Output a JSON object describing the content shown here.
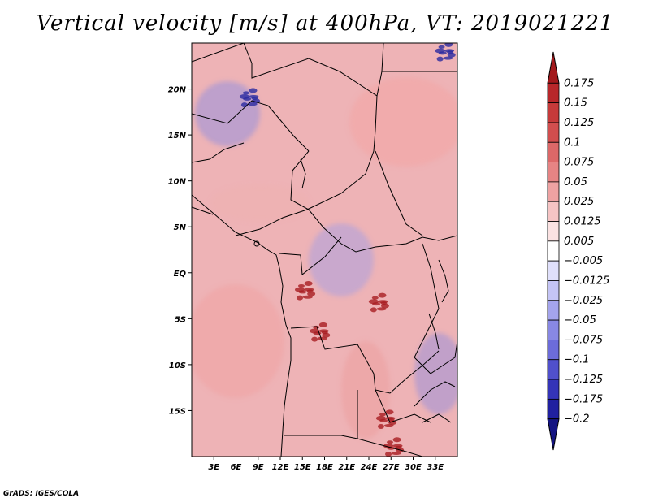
{
  "chart_data": {
    "type": "heatmap",
    "title": "Vertical velocity [m/s] at 400hPa, VT: 2019021221",
    "variable": "Vertical velocity",
    "units": "m/s",
    "level": "400hPa",
    "valid_time": "2019021221",
    "xlabel": "",
    "ylabel": "",
    "xlim": [
      0,
      36
    ],
    "ylim": [
      -20,
      25
    ],
    "x_ticks": [
      {
        "value": 3,
        "label": "3E"
      },
      {
        "value": 6,
        "label": "6E"
      },
      {
        "value": 9,
        "label": "9E"
      },
      {
        "value": 12,
        "label": "12E"
      },
      {
        "value": 15,
        "label": "15E"
      },
      {
        "value": 18,
        "label": "18E"
      },
      {
        "value": 21,
        "label": "21E"
      },
      {
        "value": 24,
        "label": "24E"
      },
      {
        "value": 27,
        "label": "27E"
      },
      {
        "value": 30,
        "label": "30E"
      },
      {
        "value": 33,
        "label": "33E"
      }
    ],
    "y_ticks": [
      {
        "value": 20,
        "label": "20N"
      },
      {
        "value": 15,
        "label": "15N"
      },
      {
        "value": 10,
        "label": "10N"
      },
      {
        "value": 5,
        "label": "5N"
      },
      {
        "value": 0,
        "label": "EQ"
      },
      {
        "value": -5,
        "label": "5S"
      },
      {
        "value": -10,
        "label": "10S"
      },
      {
        "value": -15,
        "label": "15S"
      }
    ],
    "colorbar": {
      "labels": [
        "0.175",
        "0.15",
        "0.125",
        "0.1",
        "0.075",
        "0.05",
        "0.025",
        "0.0125",
        "0.005",
        "−0.005",
        "−0.0125",
        "−0.025",
        "−0.05",
        "−0.075",
        "−0.1",
        "−0.125",
        "−0.175",
        "−0.2"
      ],
      "colors": [
        "#a3191c",
        "#b8272a",
        "#c63a3a",
        "#d24e4e",
        "#dc6868",
        "#e68484",
        "#eea2a2",
        "#f6c4c4",
        "#fbe2e2",
        "#ffffff",
        "#e0e0fb",
        "#c4c4f5",
        "#a4a4ec",
        "#8888e4",
        "#6c6cda",
        "#5050cc",
        "#3434b8",
        "#2020a0",
        "#141482"
      ]
    },
    "features": [
      {
        "name": "red-patch-congo",
        "x": 15.5,
        "y": -2.0,
        "value": 0.15
      },
      {
        "name": "red-patch-drc",
        "x": 25.5,
        "y": -3.3,
        "value": 0.15
      },
      {
        "name": "red-patch-angola",
        "x": 17.5,
        "y": -6.5,
        "value": 0.15
      },
      {
        "name": "red-patch-zambia",
        "x": 26.5,
        "y": -16.0,
        "value": 0.15
      },
      {
        "name": "red-patch-south",
        "x": 27.5,
        "y": -19.0,
        "value": 0.15
      },
      {
        "name": "blue-patch-niger",
        "x": 8.0,
        "y": 19.0,
        "value": -0.1
      },
      {
        "name": "blue-patch-nile",
        "x": 34.5,
        "y": 24.0,
        "value": -0.1
      }
    ]
  },
  "credit": "GrADS: IGES/COLA"
}
